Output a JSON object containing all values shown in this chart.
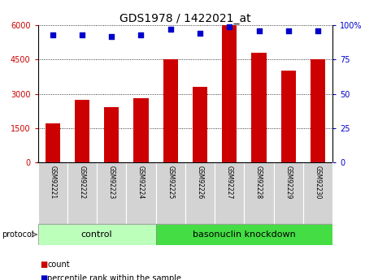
{
  "title": "GDS1978 / 1422021_at",
  "samples": [
    "GSM92221",
    "GSM92222",
    "GSM92223",
    "GSM92224",
    "GSM92225",
    "GSM92226",
    "GSM92227",
    "GSM92228",
    "GSM92229",
    "GSM92230"
  ],
  "counts": [
    1700,
    2750,
    2400,
    2800,
    4500,
    3300,
    6000,
    4800,
    4000,
    4500
  ],
  "percentile_ranks": [
    93,
    93,
    92,
    93,
    97,
    94,
    99,
    96,
    96,
    96
  ],
  "bar_color": "#cc0000",
  "dot_color": "#0000cc",
  "ylim_left": [
    0,
    6000
  ],
  "ylim_right": [
    0,
    100
  ],
  "yticks_left": [
    0,
    1500,
    3000,
    4500,
    6000
  ],
  "ytick_labels_left": [
    "0",
    "1500",
    "3000",
    "4500",
    "6000"
  ],
  "yticks_right": [
    0,
    25,
    50,
    75,
    100
  ],
  "ytick_labels_right": [
    "0",
    "25",
    "50",
    "75",
    "100%"
  ],
  "control_indices": [
    0,
    1,
    2,
    3
  ],
  "knockdown_indices": [
    4,
    5,
    6,
    7,
    8,
    9
  ],
  "control_label": "control",
  "knockdown_label": "basonuclin knockdown",
  "control_color": "#bbffbb",
  "knockdown_color": "#44dd44",
  "protocol_label": "protocol",
  "legend_count_label": "count",
  "legend_pct_label": "percentile rank within the sample",
  "background_color": "#ffffff",
  "tick_label_color_left": "#cc0000",
  "tick_label_color_right": "#0000cc",
  "grid_color": "#000000",
  "title_fontsize": 10,
  "axis_fontsize": 7,
  "bar_width": 0.5
}
